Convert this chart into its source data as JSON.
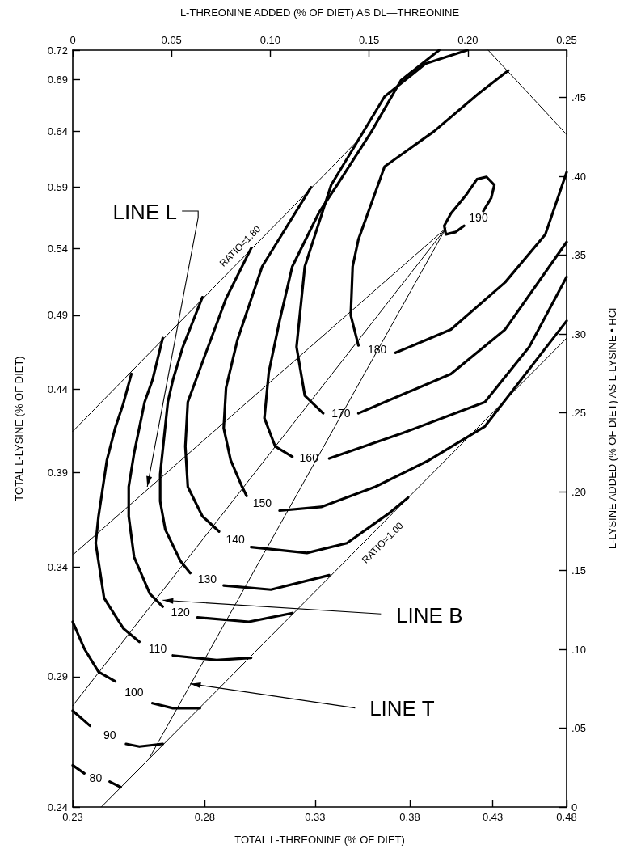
{
  "chart_data": {
    "type": "line",
    "xlabel": "TOTAL L-THREONINE (% OF DIET)",
    "ylabel": "TOTAL L-LYSINE (% OF DIET)",
    "x2label": "L-THREONINE ADDED (% OF DIET) AS DL—THREONINE",
    "y2label": "L-LYSINE ADDED (% OF DIET) AS L-LYSINE • HCl",
    "log": "xy",
    "marker": "none",
    "xlim": [
      0.23,
      0.48
    ],
    "xticks": [
      0.23,
      0.28,
      0.33,
      0.38,
      0.43,
      0.48
    ],
    "ylim": [
      0.24,
      0.72
    ],
    "yticks": [
      0.24,
      0.29,
      0.34,
      0.39,
      0.44,
      0.49,
      0.54,
      0.59,
      0.64,
      0.69,
      0.72
    ],
    "x2lim": [
      0,
      0.25
    ],
    "x2ticks": [
      0,
      0.05,
      {
        "value": 0.1,
        "label": "0.10"
      },
      0.15,
      {
        "value": 0.2,
        "label": "0.20"
      },
      0.25
    ],
    "y2lim": [
      0,
      0.48
    ],
    "y2ticks": [
      0,
      {
        "value": 0.05,
        "label": ".05"
      },
      {
        "value": 0.1,
        "label": ".10"
      },
      {
        "value": 0.15,
        "label": ".15"
      },
      {
        "value": 0.2,
        "label": ".20"
      },
      {
        "value": 0.25,
        "label": ".25"
      },
      {
        "value": 0.3,
        "label": ".30"
      },
      {
        "value": 0.35,
        "label": ".35"
      },
      {
        "value": 0.4,
        "label": ".40"
      },
      {
        "value": 0.45,
        "label": ".45"
      }
    ],
    "series": [
      {
        "name": "80",
        "color": "#000000",
        "x": [
          0.23,
          0.234,
          0.238,
          0.243,
          0.247
        ],
        "values": [
          0.255,
          0.252,
          null,
          0.249,
          0.247
        ]
      },
      {
        "name": "90",
        "color": "#000000",
        "x": [
          0.23,
          0.236,
          0.243,
          0.249,
          0.254,
          0.263
        ],
        "values": [
          0.276,
          0.27,
          null,
          0.263,
          0.262,
          0.263
        ]
      },
      {
        "name": "100",
        "color": "#000000",
        "x": [
          0.23,
          0.234,
          0.239,
          0.245,
          0.252,
          0.259,
          0.267,
          0.278
        ],
        "values": [
          0.314,
          0.302,
          0.292,
          0.288,
          null,
          0.279,
          0.277,
          0.277
        ]
      },
      {
        "name": "110",
        "color": "#000000",
        "x": [
          0.251,
          0.248,
          0.245,
          0.242,
          0.239,
          0.238,
          0.241,
          0.248,
          0.254,
          0.261,
          0.267,
          0.285,
          0.3
        ],
        "values": [
          0.45,
          0.431,
          0.416,
          0.397,
          0.366,
          0.352,
          0.325,
          0.311,
          0.305,
          null,
          0.299,
          0.297,
          0.298
        ]
      },
      {
        "name": "120",
        "color": "#000000",
        "x": [
          0.263,
          0.259,
          0.256,
          0.252,
          0.25,
          0.25,
          0.252,
          0.258,
          0.263,
          0.27,
          0.277,
          0.299,
          0.319
        ],
        "values": [
          0.474,
          0.446,
          0.432,
          0.401,
          0.382,
          0.366,
          0.345,
          0.327,
          0.321,
          null,
          0.316,
          0.314,
          0.318
        ]
      },
      {
        "name": "130",
        "color": "#000000",
        "x": [
          0.279,
          0.271,
          0.267,
          0.265,
          0.262,
          0.262,
          0.264,
          0.27,
          0.274,
          0.281,
          0.288,
          0.309,
          0.337
        ],
        "values": [
          0.503,
          0.468,
          0.446,
          0.432,
          0.389,
          0.374,
          0.359,
          0.343,
          0.337,
          null,
          0.331,
          0.329,
          0.336
        ]
      },
      {
        "name": "140",
        "color": "#000000",
        "x": [
          0.3,
          0.289,
          0.28,
          0.273,
          0.272,
          0.273,
          0.279,
          0.286,
          0.293,
          0.3,
          0.326,
          0.346,
          0.369,
          0.379
        ],
        "values": [
          0.54,
          0.502,
          0.462,
          0.432,
          0.405,
          0.382,
          0.366,
          0.358,
          null,
          0.35,
          0.347,
          0.352,
          0.368,
          0.376
        ]
      },
      {
        "name": "150",
        "color": "#000000",
        "x": [
          0.328,
          0.305,
          0.294,
          0.289,
          0.288,
          0.291,
          0.296,
          0.298,
          0.305,
          0.313,
          0.333,
          0.361,
          0.391,
          0.425,
          0.48
        ],
        "values": [
          0.59,
          0.526,
          0.473,
          0.441,
          0.416,
          0.397,
          0.382,
          0.377,
          null,
          0.369,
          0.371,
          0.382,
          0.397,
          0.417,
          0.486
        ]
      },
      {
        "name": "160",
        "color": "#000000",
        "x": [
          0.397,
          0.375,
          0.359,
          0.341,
          0.332,
          0.319,
          0.313,
          0.308,
          0.306,
          0.311,
          0.319,
          0.327,
          0.337,
          0.376,
          0.425,
          0.454,
          0.48
        ],
        "values": [
          0.72,
          0.689,
          0.64,
          0.592,
          0.569,
          0.526,
          0.486,
          0.451,
          0.422,
          0.405,
          0.399,
          null,
          0.398,
          0.413,
          0.432,
          0.468,
          0.518
        ]
      },
      {
        "name": "170",
        "color": "#000000",
        "x": [
          0.414,
          0.389,
          0.366,
          0.338,
          0.325,
          0.321,
          0.325,
          0.334,
          0.343,
          0.352,
          0.404,
          0.438,
          0.48
        ],
        "values": [
          0.72,
          0.706,
          0.673,
          0.592,
          0.526,
          0.468,
          0.436,
          0.425,
          null,
          0.425,
          0.45,
          0.48,
          0.545
        ]
      },
      {
        "name": "180",
        "color": "#000000",
        "x": [
          0.44,
          0.421,
          0.394,
          0.366,
          0.352,
          0.349,
          0.348,
          0.352,
          0.362,
          0.372,
          0.404,
          0.438,
          0.465,
          0.48
        ],
        "values": [
          0.699,
          0.676,
          0.64,
          0.608,
          0.547,
          0.526,
          0.49,
          0.469,
          null,
          0.464,
          0.48,
          0.514,
          0.551,
          0.603
        ]
      },
      {
        "name": "190",
        "color": "#000000",
        "x": [
          0.412,
          0.407,
          0.401,
          0.4,
          0.404,
          0.413,
          0.42,
          0.426,
          0.431,
          0.429,
          0.424
        ],
        "values": [
          0.558,
          0.553,
          0.551,
          0.558,
          0.568,
          0.583,
          0.597,
          0.599,
          0.592,
          0.581,
          0.57
        ]
      },
      {
        "color": "#000000",
        "x": [
          0.23,
          0.352
        ],
        "values": [
          0.414,
          0.632
        ]
      },
      {
        "color": "#000000",
        "x": [
          0.24,
          0.48
        ],
        "values": [
          0.24,
          0.474
        ]
      },
      {
        "color": "#000000",
        "x": [
          0.23,
          0.401
        ],
        "values": [
          0.346,
          0.556
        ]
      },
      {
        "color": "#000000",
        "x": [
          0.23,
          0.401
        ],
        "values": [
          0.278,
          0.556
        ]
      },
      {
        "color": "#000000",
        "x": [
          0.258,
          0.401
        ],
        "values": [
          0.258,
          0.556
        ]
      },
      {
        "color": "#000000",
        "x": [
          0.427,
          0.48
        ],
        "values": [
          0.72,
          0.637
        ]
      }
    ],
    "annotations": [
      {
        "text": "LINE L",
        "x": 0.257,
        "y": 0.382
      },
      {
        "text": "RATIO=1.80",
        "x": 0.298,
        "y": 0.536
      },
      {
        "text": "RATIO=1.00",
        "x": 0.361,
        "y": 0.358
      },
      {
        "text": "LINE B",
        "x": 0.263,
        "y": 0.324
      },
      {
        "text": "LINE T",
        "x": 0.274,
        "y": 0.287
      }
    ]
  }
}
